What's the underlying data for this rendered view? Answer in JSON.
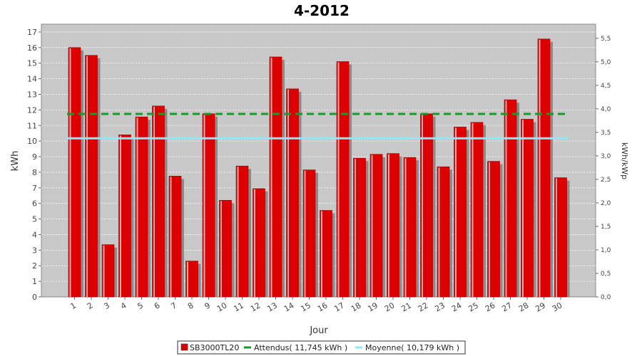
{
  "chart_data": {
    "type": "bar",
    "title": "4-2012",
    "xlabel": "Jour",
    "ylabel": "kWh",
    "y2label": "kWh/kWp",
    "ylim": [
      0,
      17.5
    ],
    "y2lim": [
      0,
      5.8
    ],
    "yticks": [
      "0",
      "1",
      "2",
      "3",
      "4",
      "5",
      "6",
      "7",
      "8",
      "9",
      "10",
      "11",
      "12",
      "13",
      "14",
      "15",
      "16",
      "17"
    ],
    "y2ticks": [
      "0,0",
      "0,5",
      "1,0",
      "1,5",
      "2,0",
      "2,5",
      "3,0",
      "3,5",
      "4,0",
      "4,5",
      "5,0",
      "5,5"
    ],
    "grid": true,
    "legend_position": "bottom",
    "categories": [
      "1",
      "2",
      "3",
      "4",
      "5",
      "6",
      "7",
      "8",
      "9",
      "10",
      "11",
      "12",
      "13",
      "14",
      "15",
      "16",
      "17",
      "18",
      "19",
      "20",
      "21",
      "22",
      "23",
      "24",
      "25",
      "26",
      "27",
      "28",
      "29",
      "30"
    ],
    "series": [
      {
        "name": "SB3000TL20",
        "color": "#dd0000",
        "values": [
          16.0,
          15.5,
          3.35,
          10.4,
          11.55,
          12.25,
          7.75,
          2.3,
          11.75,
          6.2,
          8.4,
          6.95,
          15.4,
          13.35,
          8.15,
          5.55,
          15.1,
          8.9,
          9.15,
          9.2,
          8.95,
          11.75,
          8.35,
          10.9,
          11.2,
          8.7,
          12.65,
          11.4,
          16.55,
          7.65
        ]
      },
      {
        "name": "Attendus( 11,745 kWh )",
        "color": "#1a9a2a",
        "value": 11.745
      },
      {
        "name": "Moyenne( 10,179 kWh )",
        "color": "#8eeaf0",
        "value": 10.179
      }
    ]
  }
}
